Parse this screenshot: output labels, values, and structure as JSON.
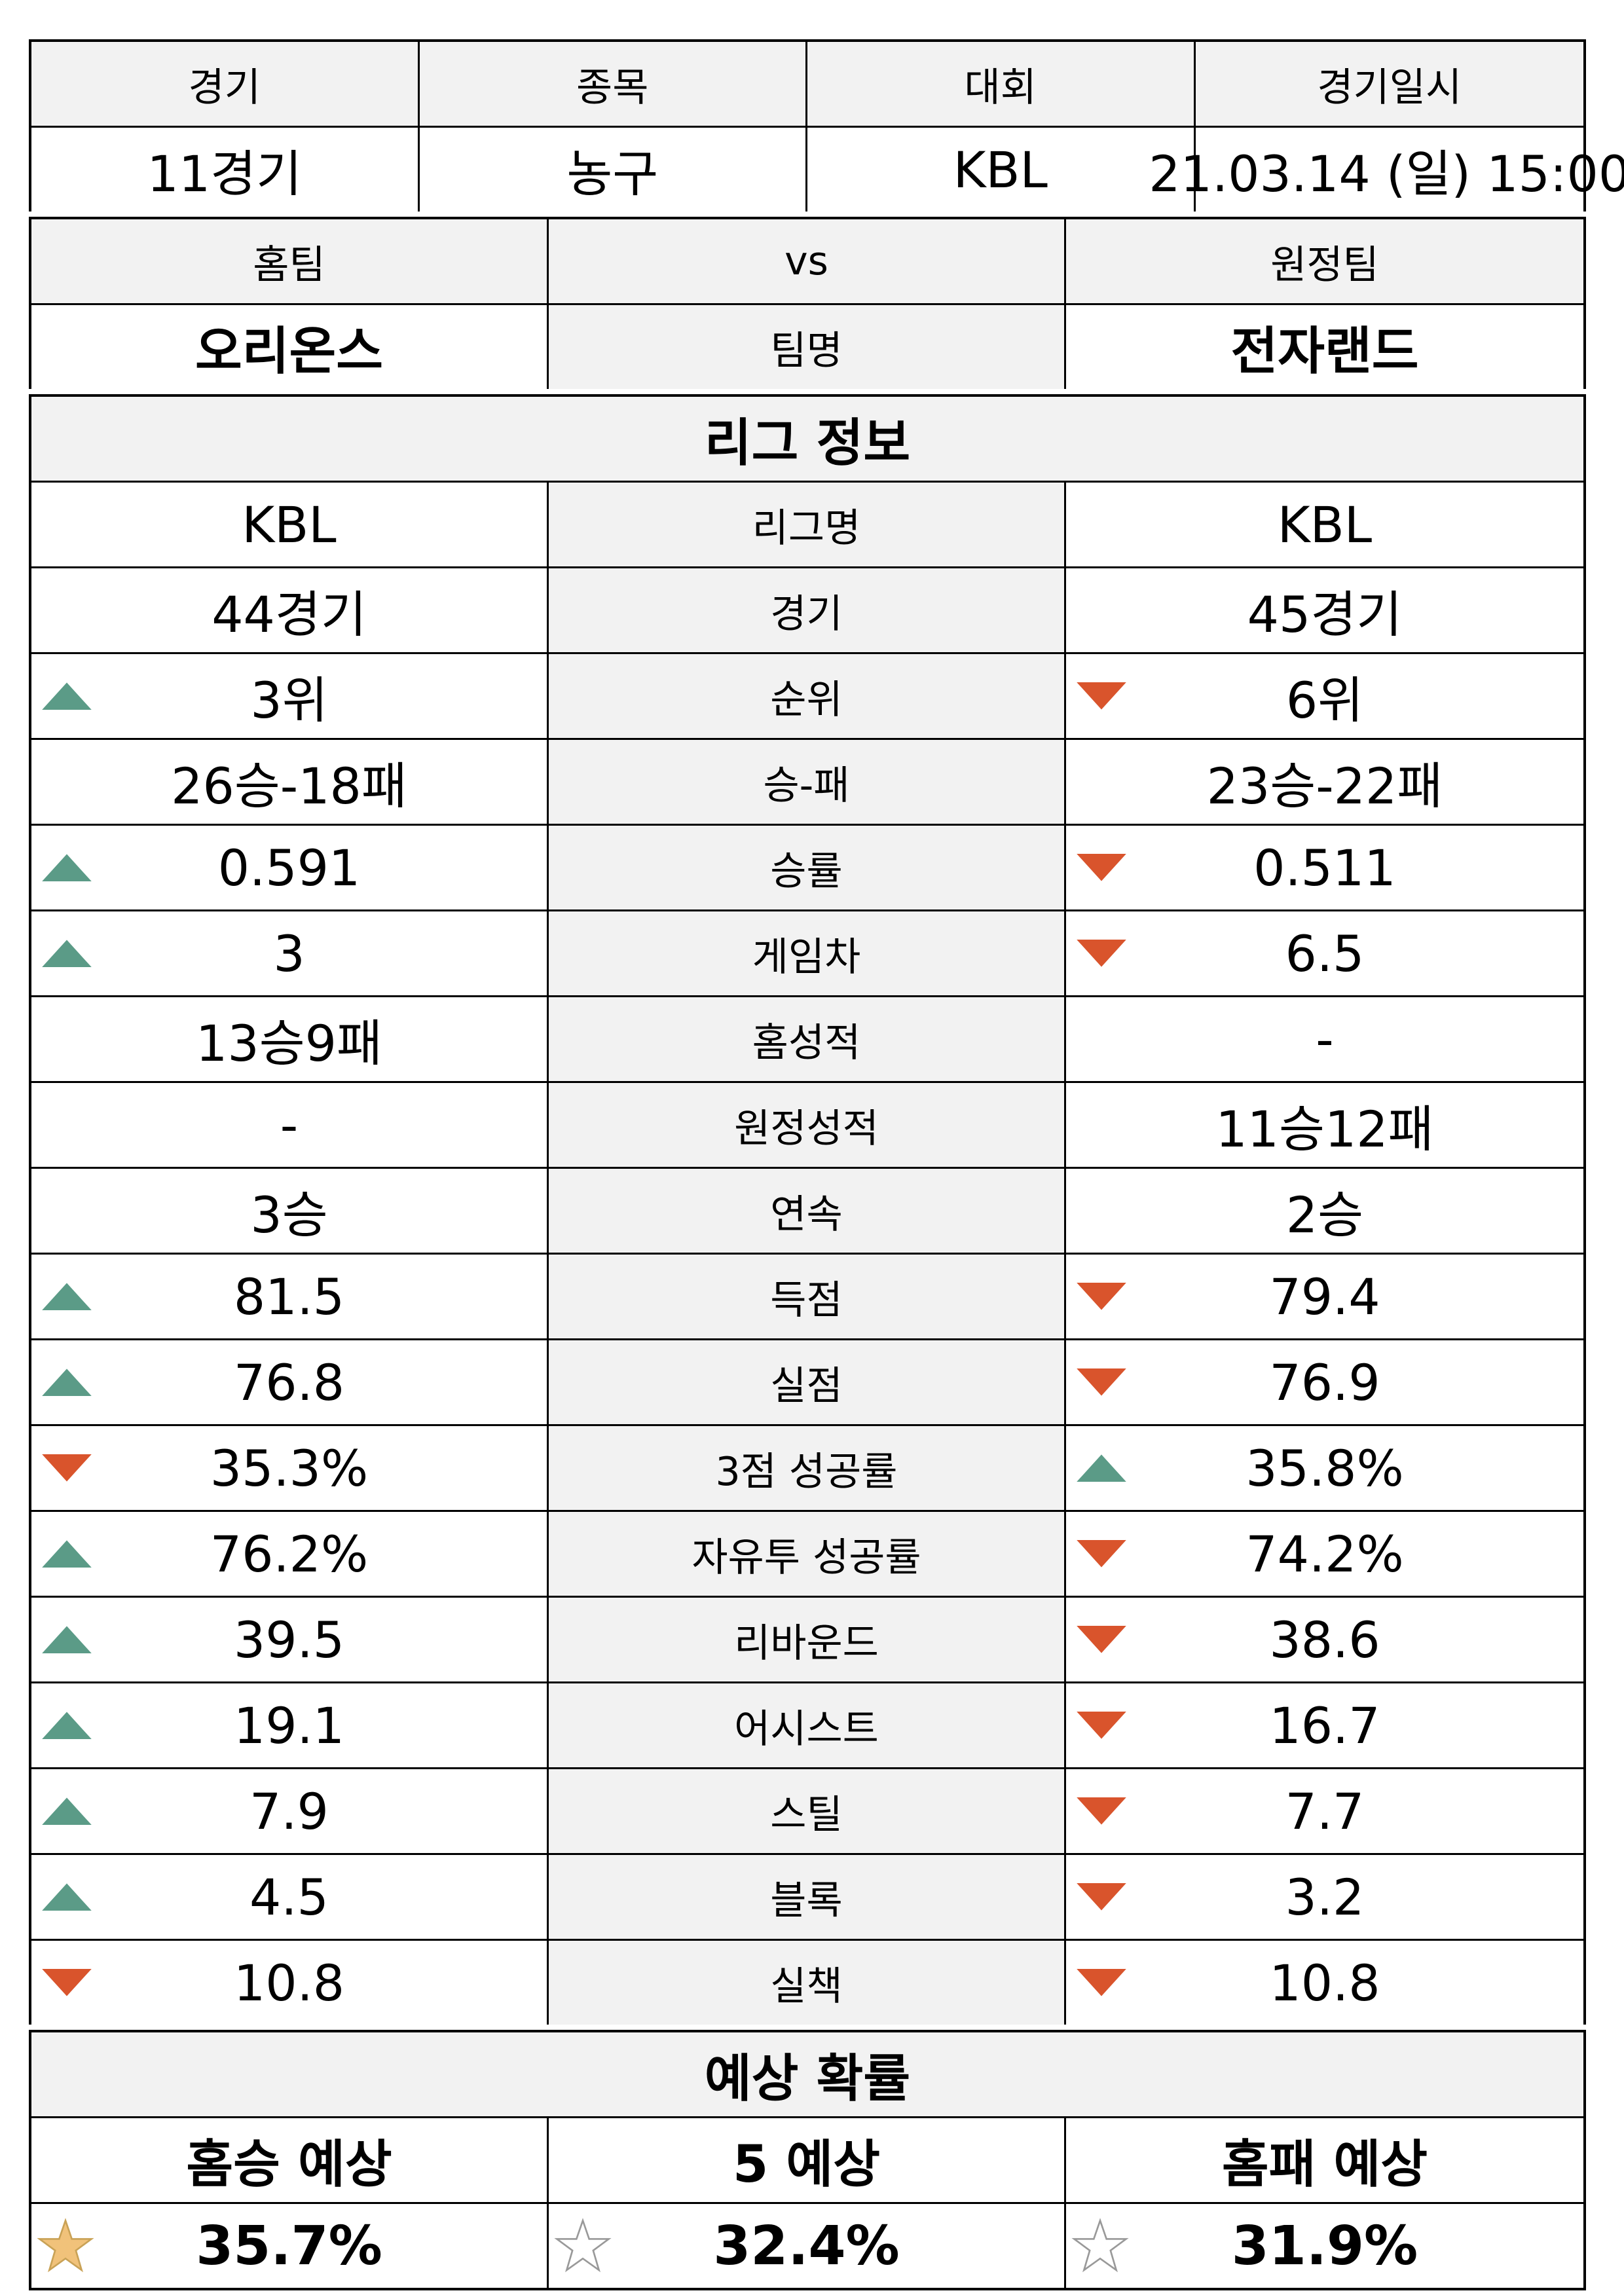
{
  "header": {
    "labels": [
      "경기",
      "종목",
      "대회",
      "경기일시"
    ],
    "values": [
      "11경기",
      "농구",
      "KBL",
      "21.03.14 (일) 15:00"
    ]
  },
  "teams": {
    "home_label": "홈팀",
    "vs_label": "vs",
    "away_label": "원정팀",
    "home_name": "오리온스",
    "name_label": "팀명",
    "away_name": "전자랜드"
  },
  "league": {
    "title": "리그 정보",
    "rows": [
      {
        "label": "리그명",
        "home": "KBL",
        "away": "KBL",
        "home_trend": "",
        "away_trend": ""
      },
      {
        "label": "경기",
        "home": "44경기",
        "away": "45경기",
        "home_trend": "",
        "away_trend": ""
      },
      {
        "label": "순위",
        "home": "3위",
        "away": "6위",
        "home_trend": "up",
        "away_trend": "down"
      },
      {
        "label": "승-패",
        "home": "26승-18패",
        "away": "23승-22패",
        "home_trend": "",
        "away_trend": ""
      },
      {
        "label": "승률",
        "home": "0.591",
        "away": "0.511",
        "home_trend": "up",
        "away_trend": "down"
      },
      {
        "label": "게임차",
        "home": "3",
        "away": "6.5",
        "home_trend": "up",
        "away_trend": "down"
      },
      {
        "label": "홈성적",
        "home": "13승9패",
        "away": "-",
        "home_trend": "",
        "away_trend": ""
      },
      {
        "label": "원정성적",
        "home": "-",
        "away": "11승12패",
        "home_trend": "",
        "away_trend": ""
      },
      {
        "label": "연속",
        "home": "3승",
        "away": "2승",
        "home_trend": "",
        "away_trend": ""
      },
      {
        "label": "득점",
        "home": "81.5",
        "away": "79.4",
        "home_trend": "up",
        "away_trend": "down"
      },
      {
        "label": "실점",
        "home": "76.8",
        "away": "76.9",
        "home_trend": "up",
        "away_trend": "down"
      },
      {
        "label": "3점 성공률",
        "home": "35.3%",
        "away": "35.8%",
        "home_trend": "down",
        "away_trend": "up"
      },
      {
        "label": "자유투 성공률",
        "home": "76.2%",
        "away": "74.2%",
        "home_trend": "up",
        "away_trend": "down"
      },
      {
        "label": "리바운드",
        "home": "39.5",
        "away": "38.6",
        "home_trend": "up",
        "away_trend": "down"
      },
      {
        "label": "어시스트",
        "home": "19.1",
        "away": "16.7",
        "home_trend": "up",
        "away_trend": "down"
      },
      {
        "label": "스틸",
        "home": "7.9",
        "away": "7.7",
        "home_trend": "up",
        "away_trend": "down"
      },
      {
        "label": "블록",
        "home": "4.5",
        "away": "3.2",
        "home_trend": "up",
        "away_trend": "down"
      },
      {
        "label": "실책",
        "home": "10.8",
        "away": "10.8",
        "home_trend": "down",
        "away_trend": "down"
      }
    ]
  },
  "prediction": {
    "title": "예상 확률",
    "labels": [
      "홈승 예상",
      "5 예상",
      "홈패 예상"
    ],
    "values": [
      "35.7%",
      "32.4%",
      "31.9%"
    ],
    "stars": [
      "filled",
      "empty",
      "empty"
    ]
  },
  "colors": {
    "up": "#5b9b87",
    "down": "#d9542c",
    "star_fill": "#f1c27a",
    "star_stroke": "#c9a256",
    "star_empty_stroke": "#999999",
    "header_gray": "#f2f2f2"
  }
}
